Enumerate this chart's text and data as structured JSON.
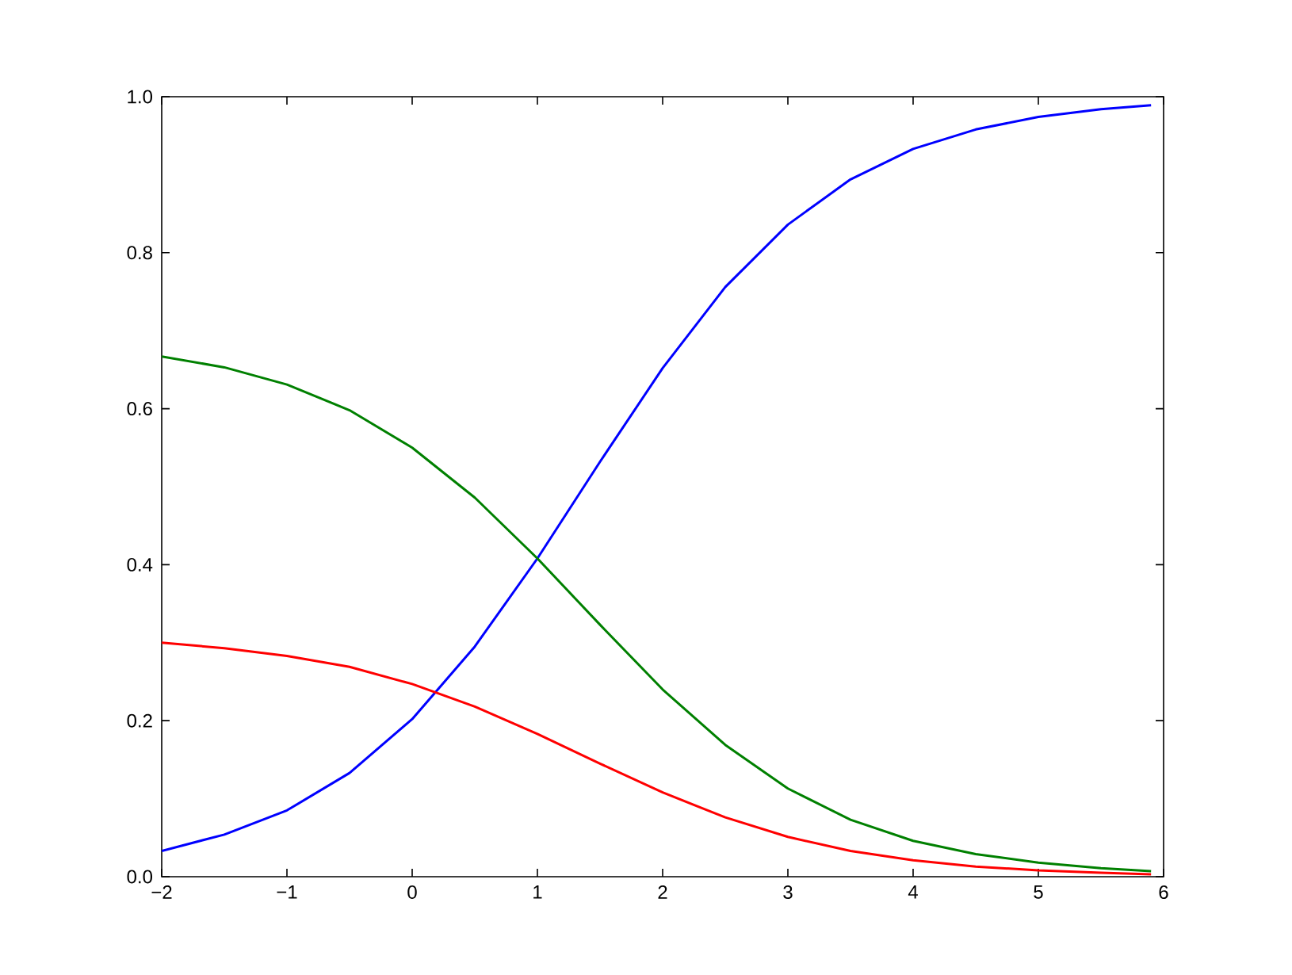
{
  "chart_data": {
    "type": "line",
    "x": [
      -2,
      -1.5,
      -1,
      -0.5,
      0,
      0.5,
      1,
      1.5,
      2,
      2.5,
      3,
      3.5,
      4,
      4.5,
      5,
      5.5,
      5.9
    ],
    "series": [
      {
        "color": "#0000ff",
        "values": [
          0.033,
          0.054,
          0.085,
          0.133,
          0.202,
          0.295,
          0.408,
          0.532,
          0.652,
          0.756,
          0.836,
          0.894,
          0.933,
          0.958,
          0.974,
          0.984,
          0.989
        ]
      },
      {
        "color": "#008000",
        "values": [
          0.667,
          0.653,
          0.631,
          0.598,
          0.55,
          0.486,
          0.408,
          0.323,
          0.24,
          0.169,
          0.113,
          0.073,
          0.046,
          0.029,
          0.018,
          0.011,
          0.007
        ]
      },
      {
        "color": "#ff0000",
        "values": [
          0.3,
          0.293,
          0.283,
          0.269,
          0.247,
          0.218,
          0.183,
          0.145,
          0.108,
          0.076,
          0.051,
          0.033,
          0.021,
          0.013,
          0.008,
          0.005,
          0.003
        ]
      }
    ],
    "xlim": [
      -2,
      6
    ],
    "ylim": [
      0,
      1
    ],
    "xticks": [
      {
        "value": -2,
        "label": "−2"
      },
      {
        "value": -1,
        "label": "−1"
      },
      {
        "value": 0,
        "label": "0"
      },
      {
        "value": 1,
        "label": "1"
      },
      {
        "value": 2,
        "label": "2"
      },
      {
        "value": 3,
        "label": "3"
      },
      {
        "value": 4,
        "label": "4"
      },
      {
        "value": 5,
        "label": "5"
      },
      {
        "value": 6,
        "label": "6"
      }
    ],
    "yticks": [
      {
        "value": 0,
        "label": "0.0"
      },
      {
        "value": 0.2,
        "label": "0.2"
      },
      {
        "value": 0.4,
        "label": "0.4"
      },
      {
        "value": 0.6,
        "label": "0.6"
      },
      {
        "value": 0.8,
        "label": "0.8"
      },
      {
        "value": 1,
        "label": "1.0"
      }
    ]
  }
}
